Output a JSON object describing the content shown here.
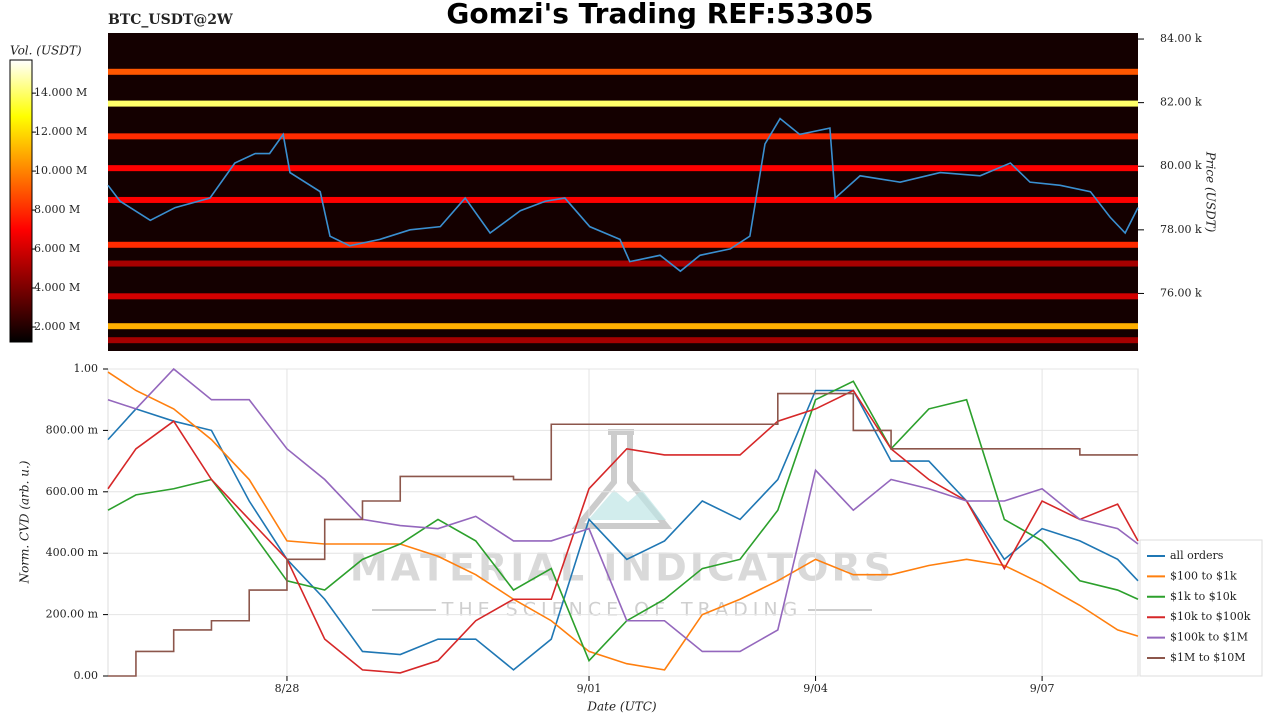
{
  "chart_data": [
    {
      "type": "heatmap",
      "title": "Gomzi's Trading REF:53305",
      "subtitle": "BTC_USDT@2W",
      "colorbar_label": "Vol. (USDT)",
      "ylabel": "Price (USDT)",
      "xlim": [
        -2.37,
        11.27
      ],
      "ylim": [
        74190,
        84190
      ],
      "yticks": [
        {
          "value": 76000,
          "label": "76.00 k"
        },
        {
          "value": 78000,
          "label": "78.00 k"
        },
        {
          "value": 80000,
          "label": "80.00 k"
        },
        {
          "value": 82000,
          "label": "82.00 k"
        },
        {
          "value": 84000,
          "label": "84.00 k"
        }
      ],
      "clim": [
        1230000,
        15700000
      ],
      "cticks": [
        {
          "value": 2000000,
          "label": "2.000 M"
        },
        {
          "value": 4000000,
          "label": "4.000 M"
        },
        {
          "value": 6000000,
          "label": "6.000 M"
        },
        {
          "value": 8000000,
          "label": "8.000 M"
        },
        {
          "value": 10000000,
          "label": "10.000 M"
        },
        {
          "value": 12000000,
          "label": "12.000 M"
        },
        {
          "value": 14000000,
          "label": "14.000 M"
        }
      ],
      "levels": {
        "price": [
          82970,
          81970,
          80940,
          79940,
          78940,
          77530,
          76940,
          75910,
          74970,
          74530
        ],
        "volume": [
          9000000,
          14000000,
          8000000,
          7000000,
          7000000,
          8000000,
          5000000,
          6000000,
          11000000,
          5000000
        ]
      },
      "color": "#3a8fd0",
      "x": [
        -2.37,
        -2.21,
        -1.81,
        -1.48,
        -1.02,
        -0.69,
        -0.42,
        -0.23,
        -0.05,
        0.04,
        0.44,
        0.57,
        0.83,
        1.23,
        1.63,
        2.03,
        2.36,
        2.69,
        3.09,
        3.42,
        3.68,
        4.01,
        4.41,
        4.54,
        4.94,
        5.21,
        5.47,
        5.87,
        6.13,
        6.33,
        6.53,
        6.79,
        7.19,
        7.26,
        7.59,
        8.12,
        8.65,
        9.18,
        9.58,
        9.84,
        10.24,
        10.64,
        10.9,
        11.1,
        11.27
      ],
      "values": [
        79400,
        78900,
        78300,
        78700,
        79000,
        80100,
        80400,
        80400,
        81000,
        79800,
        79200,
        77800,
        77500,
        77700,
        78000,
        78100,
        79000,
        77900,
        78600,
        78900,
        79000,
        78100,
        77700,
        77000,
        77200,
        76700,
        77200,
        77400,
        77800,
        80700,
        81500,
        81000,
        81200,
        79000,
        79700,
        79500,
        79800,
        79700,
        80100,
        79500,
        79400,
        79200,
        78400,
        77900,
        78700
      ]
    },
    {
      "type": "line",
      "xlabel": "Date (UTC)",
      "ylabel": "Norm. CVD (arb. u.)",
      "annotations": [
        "MATERIAL INDICATORS",
        "THE SCIENCE OF TRADING"
      ],
      "xlim": [
        -2.37,
        11.27
      ],
      "xticks": [
        {
          "value": 0,
          "label": "8/28"
        },
        {
          "value": 4,
          "label": "9/01"
        },
        {
          "value": 7,
          "label": "9/04"
        },
        {
          "value": 10,
          "label": "9/07"
        }
      ],
      "ylim": [
        0,
        1
      ],
      "yticks": [
        {
          "value": 0,
          "label": "0.00"
        },
        {
          "value": 0.2,
          "label": "200.00 m"
        },
        {
          "value": 0.4,
          "label": "400.00 m"
        },
        {
          "value": 0.6,
          "label": "600.00 m"
        },
        {
          "value": 0.8,
          "label": "800.00 m"
        },
        {
          "value": 1,
          "label": "1.00"
        }
      ],
      "grid": true,
      "legend": "right-bottom",
      "x": [
        -2.37,
        -2,
        -1.5,
        -1,
        -0.5,
        0,
        0.5,
        1,
        1.5,
        2,
        2.5,
        3,
        3.5,
        4,
        4.5,
        5,
        5.5,
        6,
        6.5,
        7,
        7.5,
        8,
        8.5,
        9,
        9.5,
        10,
        10.5,
        11,
        11.27
      ],
      "series": [
        {
          "name": "all orders",
          "color": "#1f77b4",
          "values": [
            0.77,
            0.87,
            0.83,
            0.8,
            0.57,
            0.38,
            0.25,
            0.08,
            0.07,
            0.12,
            0.12,
            0.02,
            0.12,
            0.51,
            0.38,
            0.44,
            0.57,
            0.51,
            0.64,
            0.93,
            0.93,
            0.7,
            0.7,
            0.57,
            0.38,
            0.48,
            0.44,
            0.38,
            0.31
          ]
        },
        {
          "name": "$100 to $1k",
          "color": "#ff7f0e",
          "values": [
            0.99,
            0.93,
            0.87,
            0.77,
            0.64,
            0.44,
            0.43,
            0.43,
            0.43,
            0.39,
            0.33,
            0.25,
            0.18,
            0.08,
            0.04,
            0.02,
            0.2,
            0.25,
            0.31,
            0.38,
            0.33,
            0.33,
            0.36,
            0.38,
            0.36,
            0.3,
            0.23,
            0.15,
            0.13
          ]
        },
        {
          "name": "$1k to $10k",
          "color": "#2ca02c",
          "values": [
            0.54,
            0.59,
            0.61,
            0.64,
            0.48,
            0.31,
            0.28,
            0.38,
            0.43,
            0.51,
            0.44,
            0.28,
            0.35,
            0.05,
            0.18,
            0.25,
            0.35,
            0.38,
            0.54,
            0.9,
            0.96,
            0.74,
            0.87,
            0.9,
            0.51,
            0.44,
            0.31,
            0.28,
            0.25
          ]
        },
        {
          "name": "$10k to $100k",
          "color": "#d62728",
          "values": [
            0.61,
            0.74,
            0.83,
            0.64,
            0.51,
            0.38,
            0.12,
            0.02,
            0.01,
            0.05,
            0.18,
            0.25,
            0.25,
            0.61,
            0.74,
            0.72,
            0.72,
            0.72,
            0.83,
            0.87,
            0.93,
            0.74,
            0.64,
            0.57,
            0.35,
            0.57,
            0.51,
            0.56,
            0.44
          ]
        },
        {
          "name": "$100k to $1M",
          "color": "#9467bd",
          "values": [
            0.9,
            0.87,
            1.0,
            0.9,
            0.9,
            0.74,
            0.64,
            0.51,
            0.49,
            0.48,
            0.52,
            0.44,
            0.44,
            0.48,
            0.18,
            0.18,
            0.08,
            0.08,
            0.15,
            0.67,
            0.54,
            0.64,
            0.61,
            0.57,
            0.57,
            0.61,
            0.51,
            0.48,
            0.43
          ]
        },
        {
          "name": "$1M to $10M",
          "color": "#8c564b",
          "drawstyle": "steps-post",
          "values": [
            0.0,
            0.08,
            0.15,
            0.18,
            0.28,
            0.38,
            0.51,
            0.57,
            0.65,
            0.65,
            0.65,
            0.64,
            0.82,
            0.82,
            0.82,
            0.82,
            0.82,
            0.82,
            0.92,
            0.92,
            0.8,
            0.74,
            0.74,
            0.74,
            0.74,
            0.74,
            0.72,
            0.72,
            0.72
          ]
        }
      ]
    }
  ]
}
